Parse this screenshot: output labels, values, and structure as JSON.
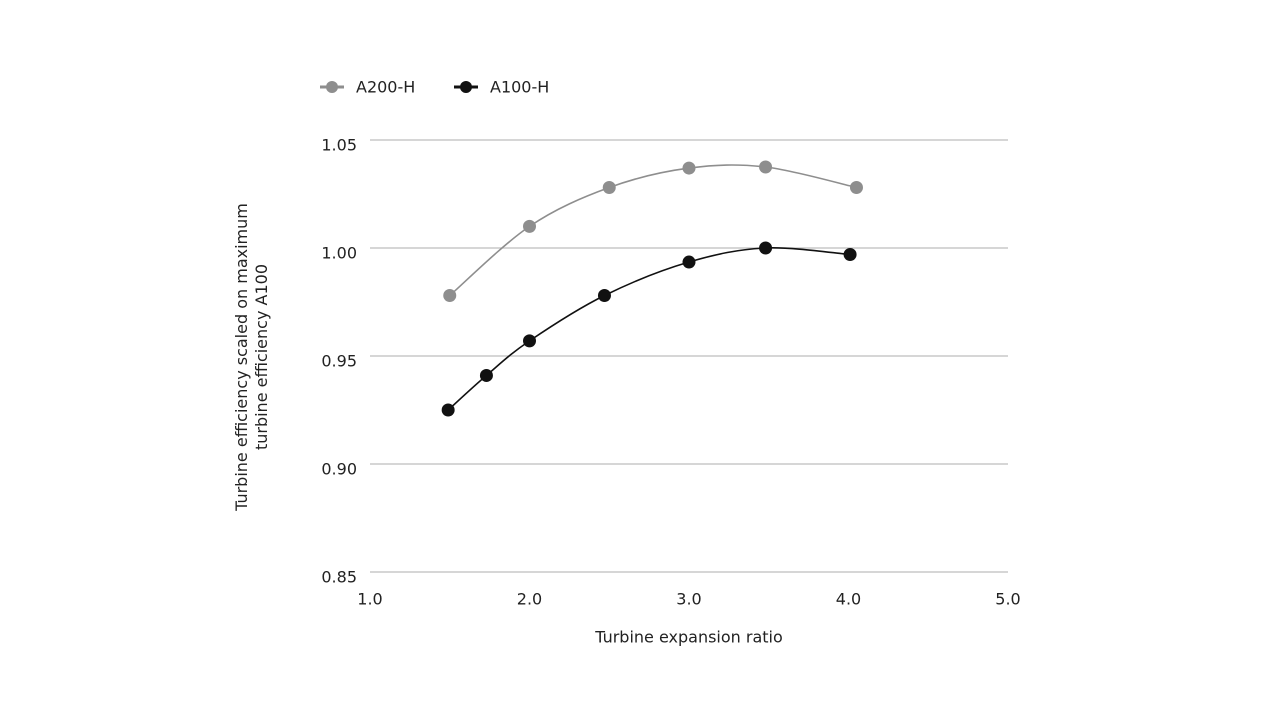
{
  "chart_data": {
    "type": "line",
    "x_label": "Turbine expansion ratio",
    "y_label": "Turbine efficiency scaled on maximum turbine efficiency A100",
    "xlim": [
      1.0,
      5.0
    ],
    "xticks": [
      {
        "value": 1,
        "label": "1.0"
      },
      {
        "value": 2,
        "label": "2.0"
      },
      {
        "value": 3,
        "label": "3.0"
      },
      {
        "value": 4,
        "label": "4.0"
      },
      {
        "value": 5,
        "label": "5.0"
      }
    ],
    "ylim": [
      0.85,
      1.05
    ],
    "yticks": [
      0.85,
      {
        "value": 0.9,
        "label": "0.90"
      },
      0.95,
      {
        "value": 1,
        "label": "1.00"
      },
      1.05
    ],
    "grid": true,
    "legend": "top-left",
    "series": [
      {
        "name": "A200-H",
        "color": "#8e8e8e",
        "x": [
          1.5,
          2.0,
          2.5,
          3.0,
          3.48,
          4.05
        ],
        "values": [
          0.978,
          1.01,
          1.028,
          1.037,
          1.0375,
          1.028
        ]
      },
      {
        "name": "A100-H",
        "color": "#111111",
        "x": [
          1.49,
          1.73,
          2.0,
          2.47,
          3.0,
          3.48,
          4.01
        ],
        "values": [
          0.925,
          0.941,
          0.957,
          0.978,
          0.9935,
          1.0,
          0.997
        ]
      }
    ]
  }
}
